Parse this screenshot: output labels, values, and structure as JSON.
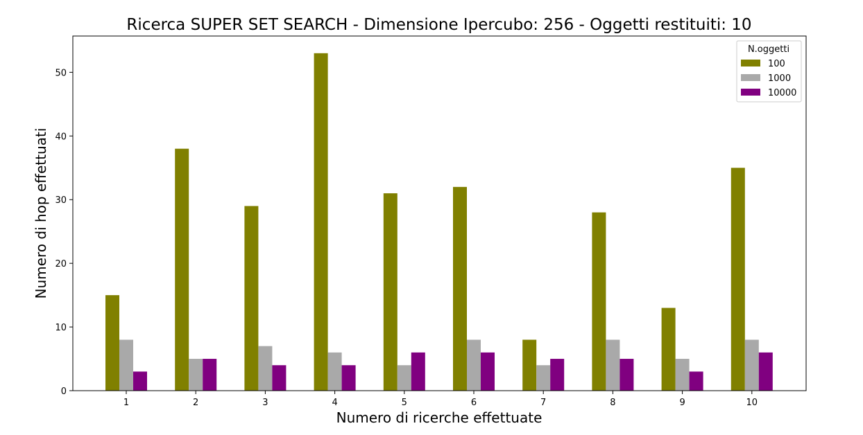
{
  "chart_data": {
    "type": "bar",
    "title": "Ricerca SUPER SET SEARCH - Dimensione Ipercubo: 256 - Oggetti restituiti: 10",
    "xlabel": "Numero di ricerche effettuate",
    "ylabel": "Numero di hop effettuati",
    "categories": [
      "1",
      "2",
      "3",
      "4",
      "5",
      "6",
      "7",
      "8",
      "9",
      "10"
    ],
    "ylim": [
      0,
      55.7
    ],
    "yticks": [
      0,
      10,
      20,
      30,
      40,
      50
    ],
    "grid": false,
    "legend": {
      "title": "N.oggetti",
      "position": "top-right"
    },
    "series": [
      {
        "name": "100",
        "color": "#808000",
        "values": [
          15,
          38,
          29,
          53,
          31,
          32,
          8,
          28,
          13,
          35
        ]
      },
      {
        "name": "1000",
        "color": "#a9a9a9",
        "values": [
          8,
          5,
          7,
          6,
          4,
          8,
          4,
          8,
          5,
          8
        ]
      },
      {
        "name": "10000",
        "color": "#800080",
        "values": [
          3,
          5,
          4,
          4,
          6,
          6,
          5,
          5,
          3,
          6
        ]
      }
    ]
  }
}
